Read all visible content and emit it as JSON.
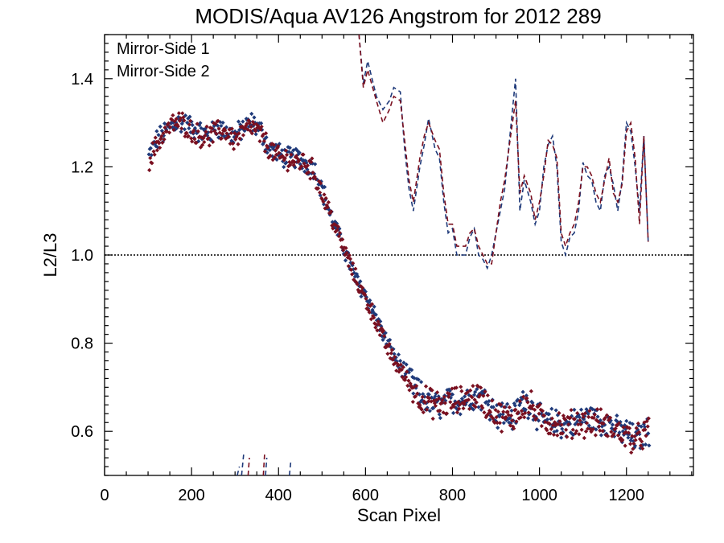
{
  "chart_data": {
    "type": "scatter",
    "title": "MODIS/Aqua AV126 Angstrom for 2012 289",
    "xlabel": "Scan Pixel",
    "ylabel": "L2/L3",
    "xlim": [
      0,
      1354
    ],
    "ylim": [
      0.5,
      1.5
    ],
    "x_ticks": [
      0,
      200,
      400,
      600,
      800,
      1000,
      1200
    ],
    "x_tick_labels": [
      "0",
      "200",
      "400",
      "600",
      "800",
      "1000",
      "1200"
    ],
    "y_ticks": [
      0.6,
      0.8,
      1.0,
      1.2,
      1.4
    ],
    "y_tick_labels": [
      "0.6",
      "0.8",
      "1.0",
      "1.2",
      "1.4"
    ],
    "grid": false,
    "legend_position": "top-left",
    "reference_line": {
      "y": 1.0,
      "style": "dotted"
    },
    "series": [
      {
        "name": "Mirror-Side 1",
        "color": "#1f3a7a",
        "trend": {
          "x": [
            100,
            120,
            140,
            160,
            180,
            200,
            220,
            240,
            260,
            280,
            300,
            320,
            340,
            360,
            380,
            400,
            420,
            440,
            460,
            480,
            500,
            520,
            540,
            560,
            580,
            600,
            620,
            640,
            660,
            680,
            700,
            720,
            740,
            760,
            780,
            800,
            820,
            840,
            860,
            880,
            900,
            920,
            940,
            960,
            980,
            1000,
            1020,
            1040,
            1060,
            1080,
            1100,
            1120,
            1140,
            1160,
            1180,
            1200,
            1220,
            1250
          ],
          "y": [
            1.22,
            1.26,
            1.28,
            1.3,
            1.3,
            1.29,
            1.28,
            1.27,
            1.29,
            1.28,
            1.27,
            1.29,
            1.3,
            1.28,
            1.24,
            1.23,
            1.22,
            1.22,
            1.21,
            1.2,
            1.15,
            1.09,
            1.04,
            0.99,
            0.94,
            0.91,
            0.87,
            0.82,
            0.78,
            0.75,
            0.72,
            0.69,
            0.67,
            0.66,
            0.66,
            0.67,
            0.67,
            0.68,
            0.68,
            0.67,
            0.64,
            0.64,
            0.63,
            0.67,
            0.66,
            0.63,
            0.62,
            0.62,
            0.61,
            0.62,
            0.63,
            0.63,
            0.62,
            0.62,
            0.6,
            0.6,
            0.58,
            0.6
          ]
        },
        "binned": {
          "x": [
            585,
            595,
            605,
            625,
            640,
            655,
            665,
            680,
            690,
            700,
            710,
            725,
            735,
            745,
            760,
            770,
            780,
            790,
            800,
            810,
            830,
            840,
            850,
            860,
            870,
            880,
            890,
            900,
            910,
            920,
            935,
            945,
            955,
            965,
            980,
            990,
            1000,
            1010,
            1020,
            1030,
            1040,
            1050,
            1060,
            1070,
            1080,
            1090,
            1100,
            1110,
            1120,
            1130,
            1140,
            1150,
            1160,
            1170,
            1180,
            1190,
            1200,
            1210,
            1220,
            1230,
            1240,
            1250
          ],
          "y": [
            1.5,
            1.39,
            1.44,
            1.36,
            1.33,
            1.35,
            1.38,
            1.37,
            1.24,
            1.15,
            1.1,
            1.2,
            1.25,
            1.31,
            1.24,
            1.22,
            1.12,
            1.05,
            1.06,
            1.0,
            1.0,
            1.04,
            1.06,
            1.0,
            0.99,
            0.97,
            1.0,
            1.05,
            1.1,
            1.15,
            1.3,
            1.4,
            1.1,
            1.17,
            1.12,
            1.07,
            1.1,
            1.2,
            1.25,
            1.27,
            1.2,
            1.03,
            1.0,
            1.04,
            1.05,
            1.1,
            1.21,
            1.18,
            1.17,
            1.12,
            1.1,
            1.18,
            1.2,
            1.16,
            1.1,
            1.17,
            1.3,
            1.28,
            1.2,
            1.1,
            1.27,
            1.03
          ]
        }
      },
      {
        "name": "Mirror-Side 2",
        "color": "#7a1020",
        "trend": {
          "x": [
            100,
            120,
            140,
            160,
            180,
            200,
            220,
            240,
            260,
            280,
            300,
            320,
            340,
            360,
            380,
            400,
            420,
            440,
            460,
            480,
            500,
            520,
            540,
            560,
            580,
            600,
            620,
            640,
            660,
            680,
            700,
            720,
            740,
            760,
            780,
            800,
            820,
            840,
            860,
            880,
            900,
            920,
            940,
            960,
            980,
            1000,
            1020,
            1040,
            1060,
            1080,
            1100,
            1120,
            1140,
            1160,
            1180,
            1200,
            1220,
            1250
          ],
          "y": [
            1.21,
            1.25,
            1.28,
            1.3,
            1.3,
            1.28,
            1.27,
            1.27,
            1.28,
            1.28,
            1.26,
            1.28,
            1.29,
            1.27,
            1.24,
            1.22,
            1.22,
            1.21,
            1.21,
            1.19,
            1.14,
            1.09,
            1.04,
            0.99,
            0.94,
            0.9,
            0.86,
            0.81,
            0.77,
            0.74,
            0.71,
            0.68,
            0.67,
            0.66,
            0.66,
            0.67,
            0.67,
            0.68,
            0.68,
            0.66,
            0.64,
            0.63,
            0.63,
            0.66,
            0.66,
            0.63,
            0.62,
            0.62,
            0.61,
            0.62,
            0.62,
            0.62,
            0.62,
            0.61,
            0.6,
            0.59,
            0.58,
            0.6
          ]
        },
        "binned": {
          "x": [
            585,
            595,
            605,
            625,
            640,
            655,
            665,
            680,
            690,
            700,
            710,
            725,
            735,
            745,
            760,
            770,
            780,
            790,
            800,
            810,
            830,
            840,
            850,
            860,
            870,
            880,
            890,
            900,
            910,
            920,
            935,
            945,
            955,
            965,
            980,
            990,
            1000,
            1010,
            1020,
            1030,
            1040,
            1050,
            1060,
            1070,
            1080,
            1090,
            1100,
            1110,
            1120,
            1130,
            1140,
            1150,
            1160,
            1170,
            1180,
            1190,
            1200,
            1210,
            1220,
            1230,
            1240,
            1250
          ],
          "y": [
            1.5,
            1.38,
            1.42,
            1.35,
            1.3,
            1.33,
            1.36,
            1.35,
            1.26,
            1.17,
            1.12,
            1.22,
            1.27,
            1.3,
            1.26,
            1.24,
            1.14,
            1.07,
            1.07,
            1.02,
            1.02,
            1.05,
            1.06,
            1.02,
            1.0,
            0.98,
            0.98,
            1.05,
            1.12,
            1.17,
            1.28,
            1.35,
            1.14,
            1.18,
            1.14,
            1.08,
            1.12,
            1.18,
            1.26,
            1.25,
            1.22,
            1.05,
            1.02,
            1.05,
            1.07,
            1.12,
            1.2,
            1.2,
            1.18,
            1.14,
            1.12,
            1.17,
            1.22,
            1.14,
            1.12,
            1.16,
            1.28,
            1.3,
            1.22,
            1.07,
            1.27,
            1.03
          ]
        }
      }
    ],
    "low_fragments": [
      {
        "x": [
          305,
          310
        ],
        "y": [
          0.5,
          0.52
        ],
        "color": "#1f3a7a"
      },
      {
        "x": [
          315,
          320
        ],
        "y": [
          0.5,
          0.55
        ],
        "color": "#1f3a7a"
      },
      {
        "x": [
          330,
          333
        ],
        "y": [
          0.5,
          0.54
        ],
        "color": "#7a1020"
      },
      {
        "x": [
          365,
          368
        ],
        "y": [
          0.5,
          0.55
        ],
        "color": "#7a1020"
      },
      {
        "x": [
          370,
          373
        ],
        "y": [
          0.5,
          0.54
        ],
        "color": "#1f3a7a"
      },
      {
        "x": [
          425,
          428
        ],
        "y": [
          0.5,
          0.53
        ],
        "color": "#1f3a7a"
      }
    ]
  }
}
